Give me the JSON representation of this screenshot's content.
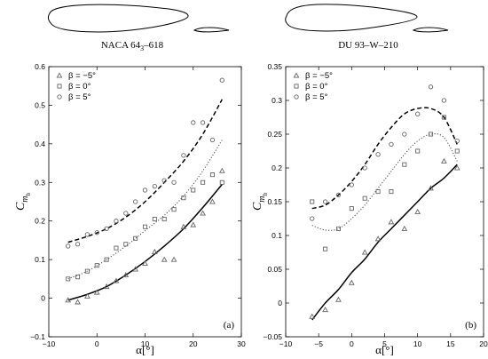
{
  "figure": {
    "airfoil_captions": {
      "left_pre": "NACA 64",
      "left_sub": "3",
      "left_post": "–618",
      "right": "DU 93–W–210"
    }
  },
  "chart_data": [
    {
      "type": "scatter",
      "panel_label": "(a)",
      "xlabel": "α[°]",
      "ylabel_main": "C",
      "ylabel_sub": "m",
      "ylabel_subsub": "h",
      "xlim": [
        -10,
        30
      ],
      "ylim": [
        -0.1,
        0.6
      ],
      "xticks": [
        -10,
        0,
        10,
        20,
        30
      ],
      "yticks": [
        -0.1,
        0,
        0.1,
        0.2,
        0.3,
        0.4,
        0.5,
        0.6
      ],
      "xtick_labels": [
        "−10",
        "0",
        "10",
        "20",
        "30"
      ],
      "ytick_labels": [
        "−0.1",
        "0",
        "0.1",
        "0.2",
        "0.3",
        "0.4",
        "0.5",
        "0.6"
      ],
      "grid": false,
      "legend_position": "top-left",
      "series": [
        {
          "name": "β = −5°",
          "marker": "triangle",
          "x": [
            -6,
            -4,
            -2,
            0,
            2,
            4,
            6,
            8,
            10,
            12,
            14,
            16,
            18,
            20,
            22,
            24,
            26
          ],
          "y": [
            -0.005,
            -0.01,
            0.005,
            0.015,
            0.03,
            0.045,
            0.06,
            0.075,
            0.09,
            0.12,
            0.1,
            0.1,
            0.185,
            0.19,
            0.22,
            0.25,
            0.33
          ]
        },
        {
          "name": "β = 0°",
          "marker": "square",
          "x": [
            -6,
            -4,
            -2,
            0,
            2,
            4,
            6,
            8,
            10,
            12,
            14,
            16,
            18,
            20,
            22,
            24,
            26
          ],
          "y": [
            0.05,
            0.055,
            0.07,
            0.085,
            0.1,
            0.13,
            0.14,
            0.155,
            0.185,
            0.205,
            0.205,
            0.23,
            0.26,
            0.28,
            0.3,
            0.32,
            0.3
          ]
        },
        {
          "name": "β = 5°",
          "marker": "circle",
          "x": [
            -6,
            -4,
            -2,
            0,
            2,
            4,
            6,
            8,
            10,
            12,
            14,
            16,
            18,
            20,
            22,
            24,
            26
          ],
          "y": [
            0.135,
            0.14,
            0.165,
            0.17,
            0.18,
            0.2,
            0.22,
            0.25,
            0.28,
            0.29,
            0.305,
            0.3,
            0.37,
            0.455,
            0.455,
            0.41,
            0.565
          ]
        }
      ],
      "fits": [
        {
          "series": "β = −5°",
          "style": "solid",
          "x": [
            -6,
            -2,
            2,
            6,
            10,
            14,
            18,
            22,
            26
          ],
          "y": [
            -0.005,
            0.01,
            0.03,
            0.06,
            0.095,
            0.135,
            0.18,
            0.235,
            0.295
          ]
        },
        {
          "series": "β = 0°",
          "style": "dotted",
          "x": [
            -6,
            -2,
            2,
            6,
            10,
            14,
            18,
            22,
            26
          ],
          "y": [
            0.05,
            0.07,
            0.1,
            0.135,
            0.175,
            0.215,
            0.265,
            0.33,
            0.41
          ]
        },
        {
          "series": "β = 5°",
          "style": "dashed",
          "x": [
            -6,
            -2,
            2,
            6,
            10,
            14,
            18,
            22,
            26
          ],
          "y": [
            0.145,
            0.16,
            0.18,
            0.21,
            0.25,
            0.3,
            0.355,
            0.425,
            0.515
          ]
        }
      ]
    },
    {
      "type": "scatter",
      "panel_label": "(b)",
      "xlabel": "α[°]",
      "ylabel_main": "C",
      "ylabel_sub": "m",
      "ylabel_subsub": "h",
      "xlim": [
        -10,
        20
      ],
      "ylim": [
        -0.05,
        0.35
      ],
      "xticks": [
        -10,
        -5,
        0,
        5,
        10,
        15,
        20
      ],
      "yticks": [
        -0.05,
        0,
        0.05,
        0.1,
        0.15,
        0.2,
        0.25,
        0.3,
        0.35
      ],
      "xtick_labels": [
        "−10",
        "−5",
        "0",
        "5",
        "10",
        "15",
        "20"
      ],
      "ytick_labels": [
        "−0.05",
        "0",
        "0.05",
        "0.1",
        "0.15",
        "0.2",
        "0.25",
        "0.3",
        "0.35"
      ],
      "grid": false,
      "legend_position": "top-left",
      "series": [
        {
          "name": "β = −5°",
          "marker": "triangle",
          "x": [
            -6,
            -4,
            -2,
            0,
            2,
            4,
            6,
            8,
            10,
            12,
            14,
            16
          ],
          "y": [
            -0.02,
            -0.01,
            0.005,
            0.03,
            0.075,
            0.095,
            0.12,
            0.11,
            0.135,
            0.17,
            0.21,
            0.2
          ]
        },
        {
          "name": "β = 0°",
          "marker": "square",
          "x": [
            -6,
            -4,
            -2,
            0,
            2,
            4,
            6,
            8,
            10,
            12,
            14,
            16
          ],
          "y": [
            0.15,
            0.08,
            0.11,
            0.14,
            0.155,
            0.165,
            0.165,
            0.205,
            0.225,
            0.25,
            0.275,
            0.225
          ]
        },
        {
          "name": "β = 5°",
          "marker": "circle",
          "x": [
            -6,
            -4,
            -2,
            0,
            2,
            4,
            6,
            8,
            10,
            12,
            14,
            16
          ],
          "y": [
            0.125,
            0.15,
            0.16,
            0.175,
            0.2,
            0.22,
            0.235,
            0.25,
            0.28,
            0.32,
            0.3,
            0.24
          ]
        }
      ],
      "fits": [
        {
          "series": "β = −5°",
          "style": "solid",
          "x": [
            -6,
            -4,
            -2,
            0,
            2,
            4,
            6,
            8,
            10,
            12,
            14,
            16
          ],
          "y": [
            -0.025,
            0.0,
            0.02,
            0.045,
            0.065,
            0.09,
            0.11,
            0.13,
            0.15,
            0.17,
            0.185,
            0.205
          ]
        },
        {
          "series": "β = 0°",
          "style": "dotted",
          "x": [
            -6,
            -4,
            -2,
            0,
            2,
            4,
            6,
            8,
            10,
            12,
            14,
            16
          ],
          "y": [
            0.115,
            0.108,
            0.11,
            0.125,
            0.145,
            0.17,
            0.195,
            0.22,
            0.24,
            0.25,
            0.245,
            0.21
          ]
        },
        {
          "series": "β = 5°",
          "style": "dashed",
          "x": [
            -6,
            -4,
            -2,
            0,
            2,
            4,
            6,
            8,
            10,
            12,
            14,
            16
          ],
          "y": [
            0.14,
            0.145,
            0.16,
            0.18,
            0.205,
            0.235,
            0.26,
            0.28,
            0.288,
            0.288,
            0.275,
            0.235
          ]
        }
      ]
    }
  ]
}
